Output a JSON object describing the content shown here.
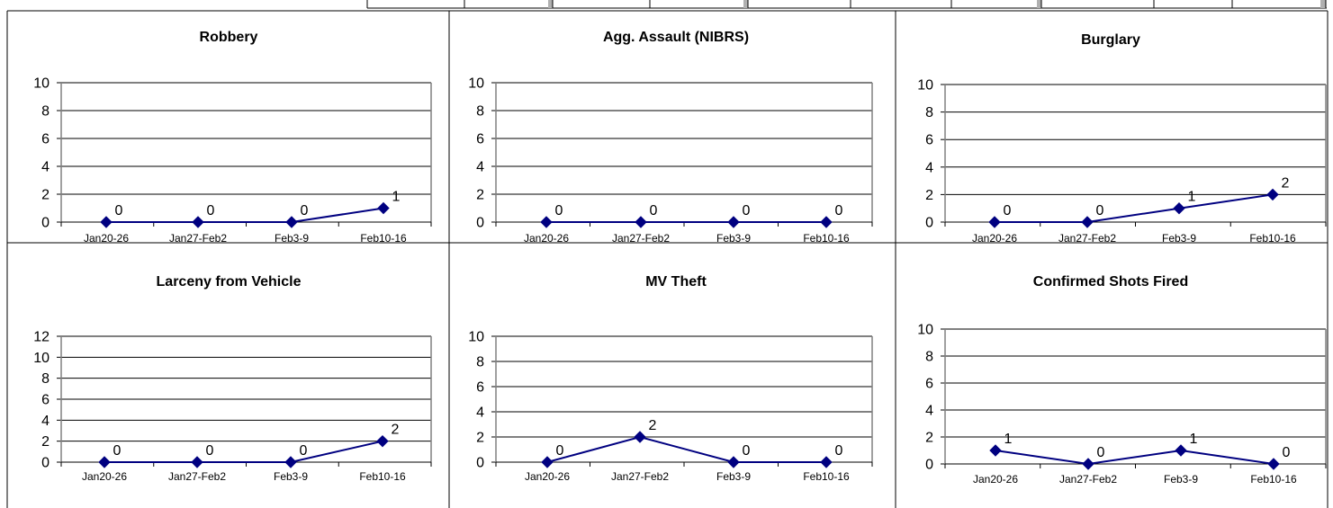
{
  "chart_data": [
    {
      "type": "line",
      "title": "Robbery",
      "categories": [
        "Jan20-26",
        "Jan27-Feb2",
        "Feb3-9",
        "Feb10-16"
      ],
      "values": [
        0,
        0,
        0,
        1
      ],
      "labels": [
        "0",
        "0",
        "0",
        "1"
      ],
      "yticks": [
        "0",
        "2",
        "4",
        "6",
        "8",
        "10"
      ],
      "ylim": [
        0,
        10
      ],
      "grid": true,
      "legend": "none",
      "series_color": "#000080"
    },
    {
      "type": "line",
      "title": "Agg. Assault (NIBRS)",
      "categories": [
        "Jan20-26",
        "Jan27-Feb2",
        "Feb3-9",
        "Feb10-16"
      ],
      "values": [
        0,
        0,
        0,
        0
      ],
      "labels": [
        "0",
        "0",
        "0",
        "0"
      ],
      "yticks": [
        "0",
        "2",
        "4",
        "6",
        "8",
        "10"
      ],
      "ylim": [
        0,
        10
      ],
      "grid": true,
      "legend": "none",
      "series_color": "#000080"
    },
    {
      "type": "line",
      "title": "Burglary",
      "categories": [
        "Jan20-26",
        "Jan27-Feb2",
        "Feb3-9",
        "Feb10-16"
      ],
      "values": [
        0,
        0,
        1,
        2
      ],
      "labels": [
        "0",
        "0",
        "1",
        "2"
      ],
      "yticks": [
        "0",
        "2",
        "4",
        "6",
        "8",
        "10"
      ],
      "ylim": [
        0,
        10
      ],
      "grid": true,
      "legend": "none",
      "series_color": "#000080"
    },
    {
      "type": "line",
      "title": "Larceny from Vehicle",
      "categories": [
        "Jan20-26",
        "Jan27-Feb2",
        "Feb3-9",
        "Feb10-16"
      ],
      "values": [
        0,
        0,
        0,
        2
      ],
      "labels": [
        "0",
        "0",
        "0",
        "2"
      ],
      "yticks": [
        "0",
        "2",
        "4",
        "6",
        "8",
        "10",
        "12"
      ],
      "ylim": [
        0,
        12
      ],
      "grid": true,
      "legend": "none",
      "series_color": "#000080"
    },
    {
      "type": "line",
      "title": "MV Theft",
      "categories": [
        "Jan20-26",
        "Jan27-Feb2",
        "Feb3-9",
        "Feb10-16"
      ],
      "values": [
        0,
        2,
        0,
        0
      ],
      "labels": [
        "0",
        "2",
        "0",
        "0"
      ],
      "yticks": [
        "0",
        "2",
        "4",
        "6",
        "8",
        "10"
      ],
      "ylim": [
        0,
        10
      ],
      "grid": true,
      "legend": "none",
      "series_color": "#000080"
    },
    {
      "type": "line",
      "title": "Confirmed Shots Fired",
      "categories": [
        "Jan20-26",
        "Jan27-Feb2",
        "Feb3-9",
        "Feb10-16"
      ],
      "values": [
        1,
        0,
        1,
        0
      ],
      "labels": [
        "1",
        "0",
        "1",
        "0"
      ],
      "yticks": [
        "0",
        "2",
        "4",
        "6",
        "8",
        "10"
      ],
      "ylim": [
        0,
        10
      ],
      "grid": true,
      "legend": "none",
      "series_color": "#000080"
    }
  ]
}
